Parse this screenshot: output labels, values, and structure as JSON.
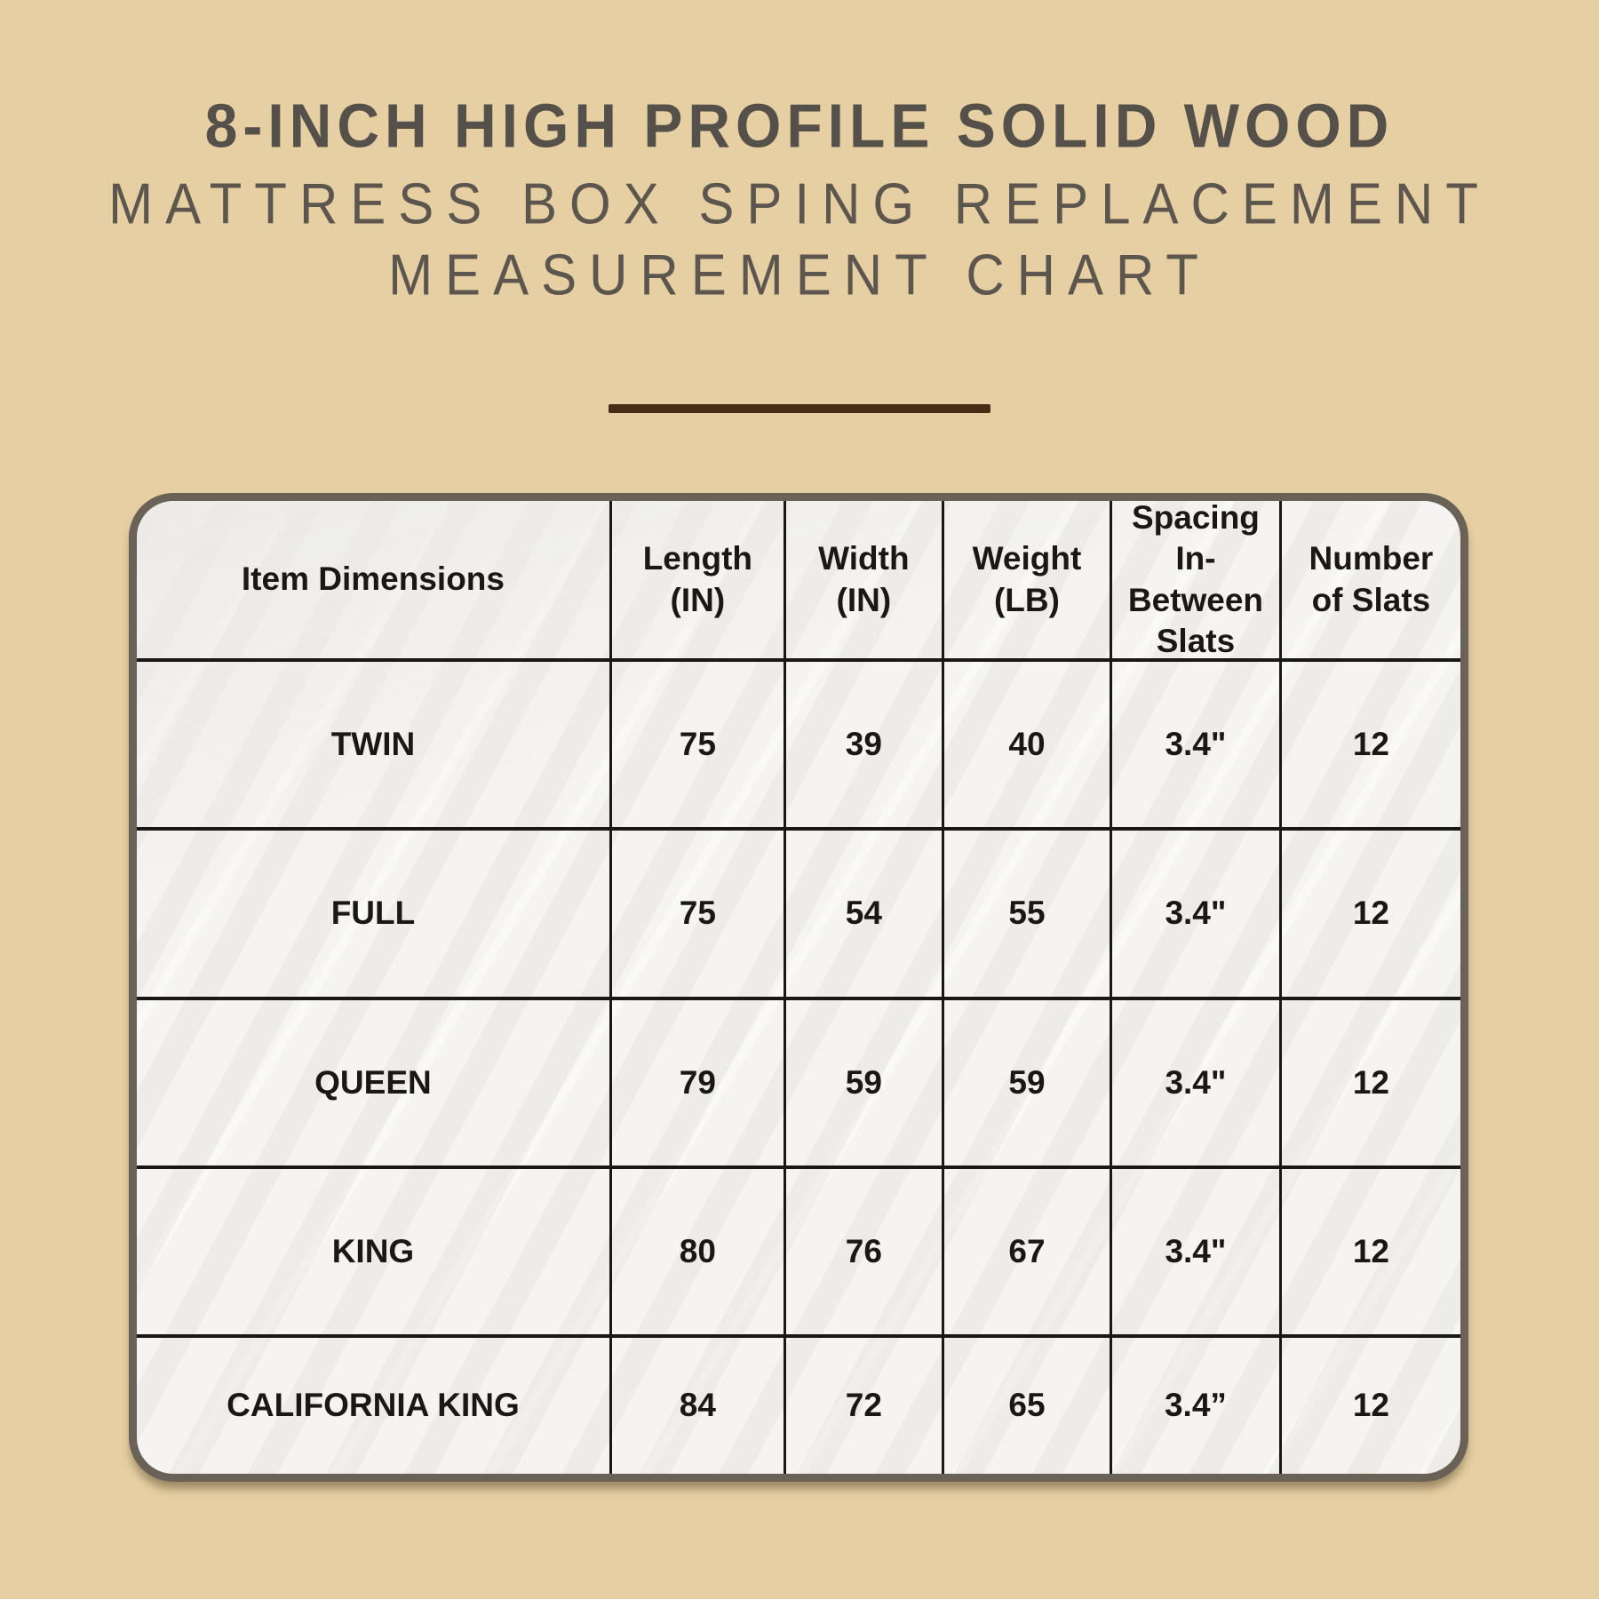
{
  "title": {
    "line1": "8-INCH HIGH PROFILE SOLID WOOD",
    "line2": "MATTRESS BOX SPING REPLACEMENT",
    "line3": "MEASUREMENT CHART"
  },
  "colors": {
    "page_background": "#e6cfa2",
    "title_text": "#57524b",
    "divider": "#4a2b15",
    "table_outer_border": "#6b6257",
    "table_grid_line": "#1a1816",
    "table_cell_background": "#f5f4f2",
    "table_text": "#1a1816"
  },
  "chart_data": {
    "type": "table",
    "title": "8-INCH HIGH PROFILE SOLID WOOD MATTRESS BOX SPING REPLACEMENT MEASUREMENT CHART",
    "columns": [
      "Item Dimensions",
      "Length (IN)",
      "Width (IN)",
      "Weight (LB)",
      "Spacing In-Between Slats",
      "Number of Slats"
    ],
    "header_display": [
      "Item Dimensions",
      "Length\n(IN)",
      "Width\n(IN)",
      "Weight\n(LB)",
      "Spacing\nIn-Between\nSlats",
      "Number\nof Slats"
    ],
    "rows": [
      [
        "TWIN",
        "75",
        "39",
        "40",
        "3.4\"",
        "12"
      ],
      [
        "FULL",
        "75",
        "54",
        "55",
        "3.4\"",
        "12"
      ],
      [
        "QUEEN",
        "79",
        "59",
        "59",
        "3.4\"",
        "12"
      ],
      [
        "KING",
        "80",
        "76",
        "67",
        "3.4\"",
        "12"
      ],
      [
        "CALIFORNIA KING",
        "84",
        "72",
        "65",
        "3.4”",
        "12"
      ]
    ]
  }
}
